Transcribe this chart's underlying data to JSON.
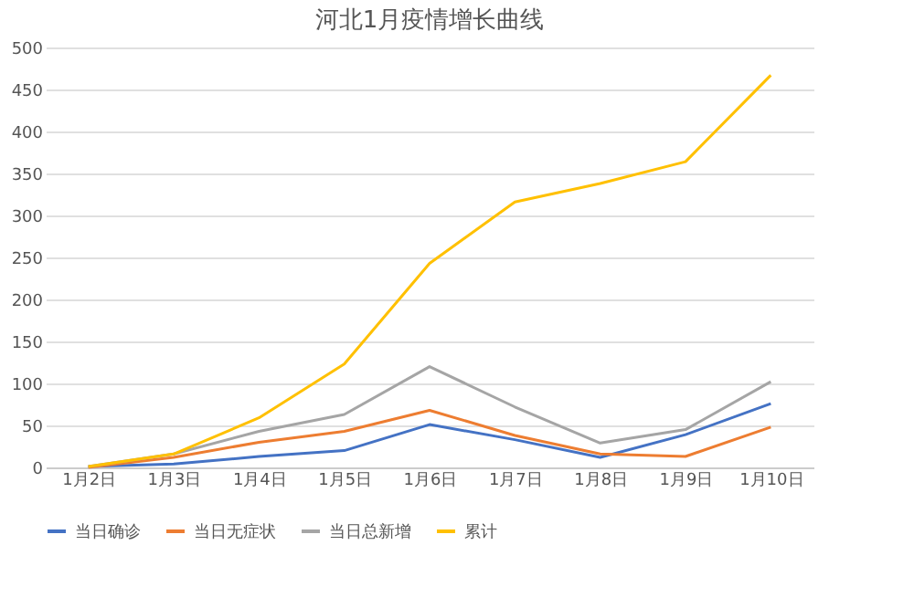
{
  "chart_data": {
    "type": "line",
    "title": "河北1月疫情增长曲线",
    "categories": [
      "1月2日",
      "1月3日",
      "1月4日",
      "1月5日",
      "1月6日",
      "1月7日",
      "1月8日",
      "1月9日",
      "1月10日"
    ],
    "series": [
      {
        "name": "当日确诊",
        "color": "#4472c4",
        "values": [
          1,
          4,
          13,
          20,
          51,
          33,
          12,
          39,
          76
        ]
      },
      {
        "name": "当日无症状",
        "color": "#ed7d31",
        "values": [
          0,
          12,
          30,
          43,
          68,
          38,
          16,
          13,
          48
        ]
      },
      {
        "name": "当日总新增",
        "color": "#a5a5a5",
        "values": [
          1,
          16,
          43,
          63,
          120,
          72,
          29,
          45,
          102
        ]
      },
      {
        "name": "累计",
        "color": "#ffc000",
        "values": [
          1,
          16,
          59,
          123,
          243,
          316,
          338,
          364,
          467
        ]
      }
    ],
    "ylim": [
      0,
      500
    ],
    "yticks": [
      0,
      50,
      100,
      150,
      200,
      250,
      300,
      350,
      400,
      450,
      500
    ],
    "grid": "y",
    "legend": "bottom",
    "marker": "none",
    "line_style": "solid"
  }
}
